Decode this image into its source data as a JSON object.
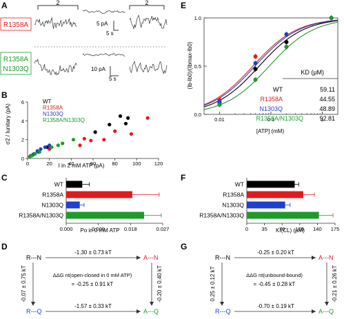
{
  "colors": {
    "wt": "#000000",
    "r1358a": "#e31a1c",
    "n1303q": "#1f3fcf",
    "double": "#1e9a2c"
  },
  "panel_a": {
    "letter": "A",
    "bracket_left": "2",
    "bracket_right": "2",
    "label_r1358a": "R1358A",
    "label_double_1": "R1358A",
    "label_double_2": "N1303Q",
    "scale_top_amp": "5 pA",
    "scale_top_time": "5 s",
    "scale_bottom_amp": "10 pA",
    "scale_bottom_time": "5 s"
  },
  "panel_b": {
    "letter": "B",
    "ylabel": "σ2 / Iunitary (pA)",
    "xlabel": "I in 2 mM ATP (pA)",
    "legend": [
      "WT",
      "R1358A",
      "N1303Q",
      "R1358A/N1303Q"
    ],
    "chart_data": {
      "type": "scatter",
      "xlim": [
        0,
        120
      ],
      "ylim": [
        0,
        6
      ],
      "xticks": [
        "0",
        "20",
        "40",
        "60",
        "80",
        "100",
        "120"
      ],
      "yticks": [
        "0",
        "2",
        "4",
        "6"
      ],
      "series": [
        {
          "name": "WT",
          "points": [
            [
              5,
              0.4
            ],
            [
              10,
              0.7
            ],
            [
              18,
              1.2
            ],
            [
              62,
              2.8
            ],
            [
              75,
              3.6
            ],
            [
              85,
              4.5
            ],
            [
              90,
              3.7
            ],
            [
              92,
              4.3
            ]
          ]
        },
        {
          "name": "R1358A",
          "points": [
            [
              20,
              1.0
            ],
            [
              48,
              1.4
            ],
            [
              52,
              2.1
            ],
            [
              58,
              1.9
            ],
            [
              70,
              2.0
            ],
            [
              80,
              2.9
            ],
            [
              95,
              2.6
            ],
            [
              110,
              4.3
            ]
          ]
        },
        {
          "name": "N1303Q",
          "points": [
            [
              3,
              0.3
            ],
            [
              6,
              0.5
            ],
            [
              9,
              0.8
            ],
            [
              12,
              1.0
            ],
            [
              16,
              1.2
            ],
            [
              20,
              1.4
            ]
          ]
        },
        {
          "name": "R1358A/N1303Q",
          "points": [
            [
              2,
              0.2
            ],
            [
              4,
              0.3
            ],
            [
              7,
              0.5
            ],
            [
              11,
              0.7
            ],
            [
              22,
              1.2
            ],
            [
              28,
              1.4
            ],
            [
              32,
              1.6
            ],
            [
              42,
              2.0
            ]
          ]
        }
      ]
    }
  },
  "panel_c": {
    "letter": "C",
    "xlabel": "Po in 0 mM ATP",
    "chart_data": {
      "type": "bar",
      "orientation": "horizontal",
      "categories": [
        "WT",
        "R1358A",
        "N1303Q",
        "R1358A/N1303Q"
      ],
      "values": [
        0.0045,
        0.0185,
        0.0038,
        0.0218
      ],
      "errors": [
        0.002,
        0.0075,
        0.0012,
        0.0048
      ],
      "xlim": [
        0,
        0.027
      ],
      "xticks": [
        "0.000",
        "0.009",
        "0.018",
        "0.027"
      ]
    }
  },
  "panel_d": {
    "letter": "D",
    "node_tl": "R---N",
    "node_tr": "A---N",
    "node_bl": "R---Q",
    "node_br": "A---Q",
    "top_value": "-1.30 ± 0.73 kT",
    "bottom_value": "-1.57 ± 0.33 kT",
    "left_value": "-0.07 ± 0.75 kT",
    "right_value": "-0.20 ± 0.40 kT",
    "center_title": "ΔΔG nt(open-closed in 0 mM ATP)",
    "center_value": "= -0.25 ± 0.91 kT"
  },
  "panel_e": {
    "letter": "E",
    "ylabel": "(Ib-Ib0)/(Ibmax-Ib0)",
    "xlabel": "[ATP] (mM)",
    "kd_header": "KD (µM)",
    "chart_data": {
      "type": "line",
      "xscale": "log",
      "xlim": [
        0.005,
        2
      ],
      "ylim": [
        0,
        1
      ],
      "xticks": [
        "0.01",
        "0.1",
        "1"
      ],
      "yticks": [
        "0.0",
        "0.5",
        "1.0"
      ],
      "series": [
        {
          "name": "WT",
          "kd": "59.11",
          "kd_mM": 0.05911,
          "points": [
            [
              0.01,
              0.12
            ],
            [
              0.05,
              0.47
            ],
            [
              0.2,
              0.75
            ],
            [
              1.5,
              1.0
            ]
          ]
        },
        {
          "name": "R1358A",
          "kd": "44.55",
          "kd_mM": 0.04455,
          "points": [
            [
              0.01,
              0.15
            ],
            [
              0.05,
              0.6
            ],
            [
              0.2,
              0.7
            ],
            [
              1.5,
              1.0
            ]
          ]
        },
        {
          "name": "N1303Q",
          "kd": "48.89",
          "kd_mM": 0.04889,
          "points": [
            [
              0.01,
              0.13
            ],
            [
              0.05,
              0.53
            ],
            [
              0.2,
              0.83
            ],
            [
              1.5,
              1.0
            ]
          ]
        },
        {
          "name": "R1358A/N1303Q",
          "kd": "92.81",
          "kd_mM": 0.09281,
          "points": [
            [
              0.01,
              0.1
            ],
            [
              0.05,
              0.36
            ],
            [
              0.2,
              0.7
            ],
            [
              1.5,
              1.0
            ]
          ]
        }
      ]
    }
  },
  "panel_f": {
    "letter": "F",
    "xlabel": "KI(CL) (µM)",
    "chart_data": {
      "type": "bar",
      "orientation": "horizontal",
      "categories": [
        "WT",
        "R1358A",
        "N1303Q",
        "R1358A/N1303Q"
      ],
      "values": [
        95,
        112,
        76,
        143
      ],
      "errors": [
        8,
        22,
        10,
        28
      ],
      "xlim": [
        0,
        175
      ],
      "xticks": [
        "0",
        "35",
        "70",
        "105",
        "140",
        "175"
      ]
    }
  },
  "panel_g": {
    "letter": "G",
    "node_tl": "R---N",
    "node_tr": "A---N",
    "node_bl": "R---Q",
    "node_br": "A---Q",
    "top_value": "-0.25 ± 0.20 kT",
    "bottom_value": "-0.70 ± 0.19 kT",
    "left_value": "0.25 ± 0.12 kT",
    "right_value": "-0.21 ± 0.26 kT",
    "center_title": "ΔΔG nt(unbound-bound)",
    "center_value": "= -0.45 ± 0.28 kT"
  }
}
